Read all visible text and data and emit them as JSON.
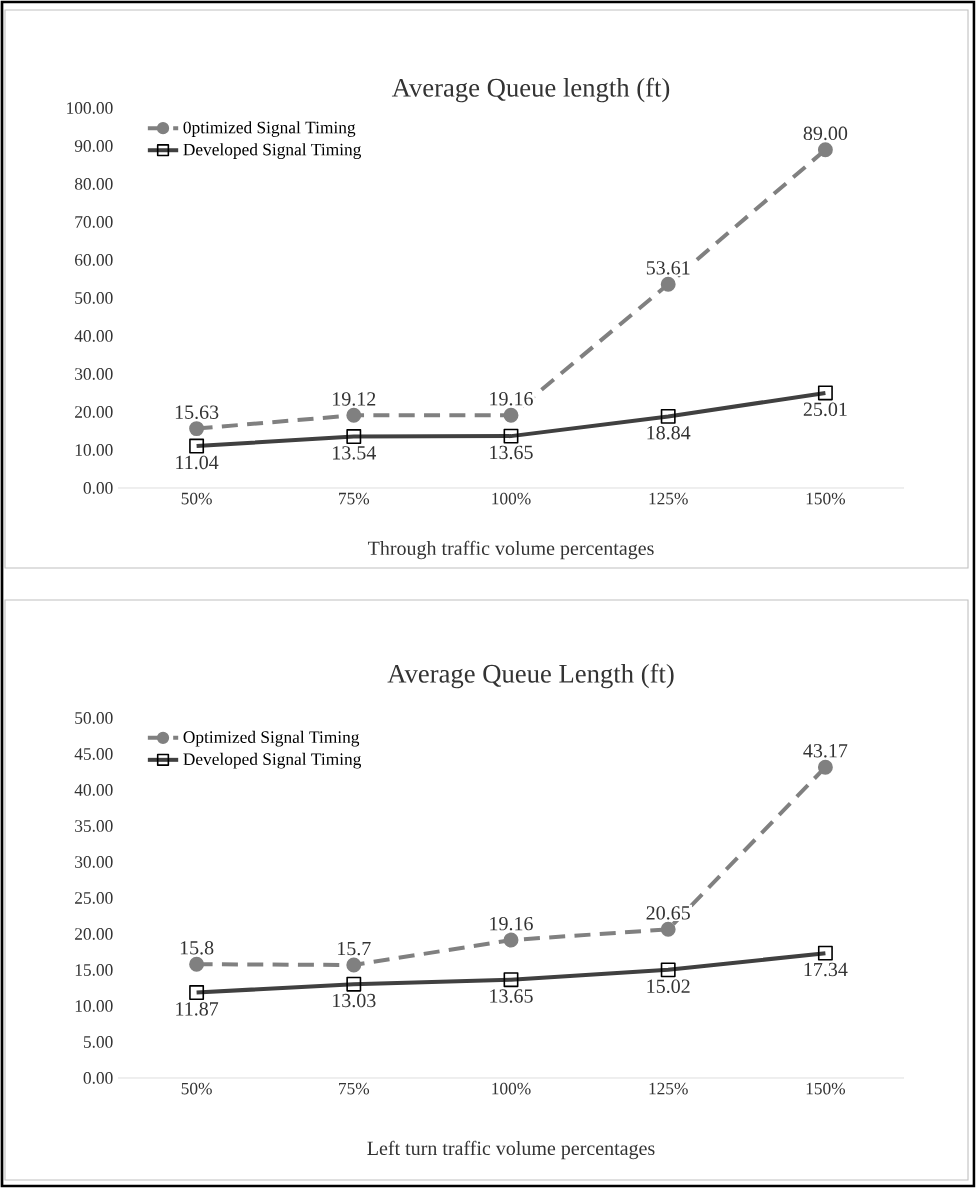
{
  "chart_data": [
    {
      "type": "line",
      "title": "Average Queue length (ft)",
      "xlabel": "Through traffic volume percentages",
      "categories": [
        "50%",
        "75%",
        "100%",
        "125%",
        "150%"
      ],
      "series": [
        {
          "name": "0ptimized Signal Timing",
          "color": "#808080",
          "line_style": "dashed",
          "marker": "circle",
          "values": [
            15.63,
            19.12,
            19.16,
            53.61,
            89.0
          ],
          "value_labels": [
            "15.63",
            "19.12",
            "19.16",
            "53.61",
            "89.00"
          ]
        },
        {
          "name": "Developed Signal Timing",
          "color": "#404040",
          "line_style": "solid",
          "marker": "square",
          "values": [
            11.04,
            13.54,
            13.65,
            18.84,
            25.01
          ],
          "value_labels": [
            "11.04",
            "13.54",
            "13.65",
            "18.84",
            "25.01"
          ]
        }
      ],
      "ylim": [
        0,
        100
      ],
      "yticks": [
        {
          "value": 0,
          "label": "0.00"
        },
        {
          "value": 10,
          "label": "10.00"
        },
        {
          "value": 20,
          "label": "20.00"
        },
        {
          "value": 30,
          "label": "30.00"
        },
        {
          "value": 40,
          "label": "40.00"
        },
        {
          "value": 50,
          "label": "50.00"
        },
        {
          "value": 60,
          "label": "60.00"
        },
        {
          "value": 70,
          "label": "70.00"
        },
        {
          "value": 80,
          "label": "80.00"
        },
        {
          "value": 90,
          "label": "90.00"
        },
        {
          "value": 100,
          "label": "100.00"
        }
      ],
      "legend": "top left",
      "grid": false
    },
    {
      "type": "line",
      "title": "Average Queue Length (ft)",
      "xlabel": "Left turn  traffic volume percentages",
      "categories": [
        "50%",
        "75%",
        "100%",
        "125%",
        "150%"
      ],
      "series": [
        {
          "name": "Optimized Signal Timing",
          "color": "#808080",
          "line_style": "dashed",
          "marker": "circle",
          "values": [
            15.8,
            15.7,
            19.16,
            20.65,
            43.17
          ],
          "value_labels": [
            "15.8",
            "15.7",
            "19.16",
            "20.65",
            "43.17"
          ]
        },
        {
          "name": "Developed Signal Timing",
          "color": "#404040",
          "line_style": "solid",
          "marker": "square",
          "values": [
            11.87,
            13.03,
            13.65,
            15.02,
            17.34
          ],
          "value_labels": [
            "11.87",
            "13.03",
            "13.65",
            "15.02",
            "17.34"
          ]
        }
      ],
      "ylim": [
        0,
        50
      ],
      "yticks": [
        {
          "value": 0,
          "label": "0.00"
        },
        {
          "value": 5,
          "label": "5.00"
        },
        {
          "value": 10,
          "label": "10.00"
        },
        {
          "value": 15,
          "label": "15.00"
        },
        {
          "value": 20,
          "label": "20.00"
        },
        {
          "value": 25,
          "label": "25.00"
        },
        {
          "value": 30,
          "label": "30.00"
        },
        {
          "value": 35,
          "label": "35.00"
        },
        {
          "value": 40,
          "label": "40.00"
        },
        {
          "value": 45,
          "label": "45.00"
        },
        {
          "value": 50,
          "label": "50.00"
        }
      ],
      "legend": "top left",
      "grid": false
    }
  ]
}
